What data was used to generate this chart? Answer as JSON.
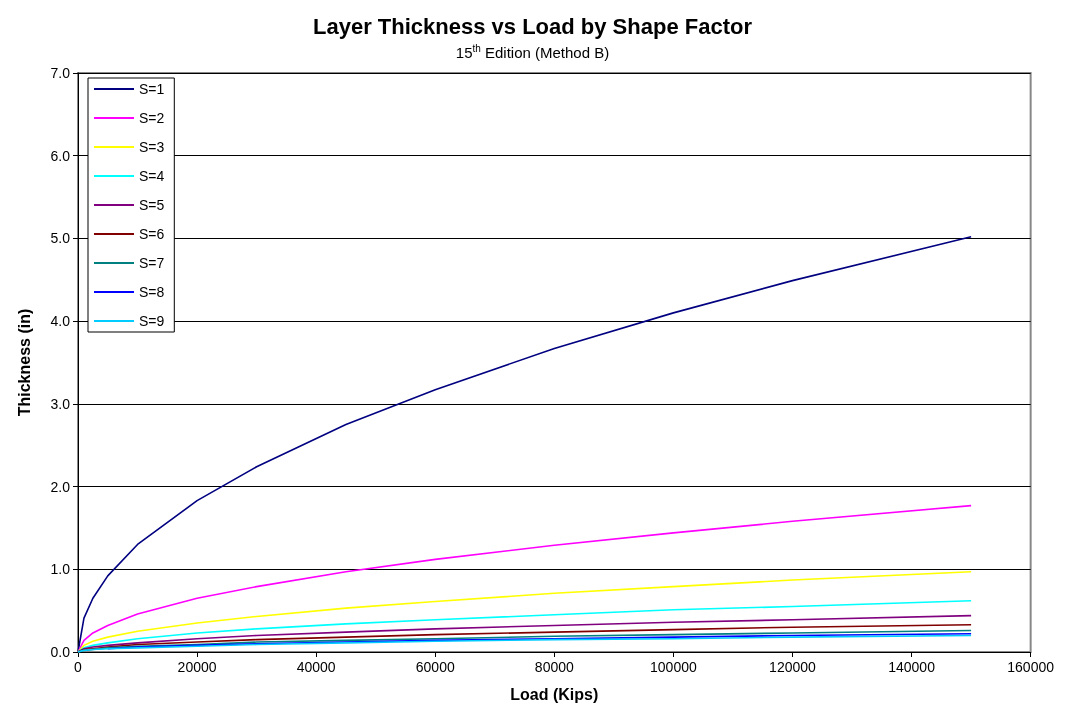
{
  "chart_data": {
    "type": "line",
    "title": "Layer Thickness vs Load by Shape Factor",
    "subtitle": "15$^{th}$ Edition (Method B)",
    "xlabel": "Load (Kips)",
    "ylabel": "Thickness (in)",
    "x": [
      0,
      1000,
      2500,
      5000,
      10000,
      20000,
      30000,
      45000,
      60000,
      80000,
      100000,
      120000,
      150000
    ],
    "series": [
      {
        "name": "S=1",
        "color": "#000080",
        "values": [
          0,
          0.41,
          0.65,
          0.92,
          1.3,
          1.83,
          2.24,
          2.75,
          3.17,
          3.67,
          4.1,
          4.49,
          5.02
        ]
      },
      {
        "name": "S=2",
        "color": "#ff00ff",
        "values": [
          0,
          0.14,
          0.23,
          0.32,
          0.46,
          0.65,
          0.79,
          0.97,
          1.12,
          1.29,
          1.44,
          1.58,
          1.77
        ]
      },
      {
        "name": "S=3",
        "color": "#ffff00",
        "values": [
          0,
          0.08,
          0.13,
          0.18,
          0.25,
          0.35,
          0.43,
          0.53,
          0.61,
          0.71,
          0.79,
          0.87,
          0.97
        ]
      },
      {
        "name": "S=4",
        "color": "#00ffff",
        "values": [
          0,
          0.05,
          0.08,
          0.11,
          0.16,
          0.23,
          0.28,
          0.34,
          0.39,
          0.45,
          0.51,
          0.55,
          0.62
        ]
      },
      {
        "name": "S=5",
        "color": "#800080",
        "values": [
          0,
          0.04,
          0.06,
          0.08,
          0.11,
          0.16,
          0.2,
          0.24,
          0.28,
          0.32,
          0.36,
          0.39,
          0.44
        ]
      },
      {
        "name": "S=6",
        "color": "#800000",
        "values": [
          0,
          0.03,
          0.04,
          0.06,
          0.09,
          0.12,
          0.15,
          0.18,
          0.21,
          0.24,
          0.27,
          0.3,
          0.33
        ]
      },
      {
        "name": "S=7",
        "color": "#008080",
        "values": [
          0,
          0.02,
          0.03,
          0.05,
          0.07,
          0.09,
          0.12,
          0.14,
          0.16,
          0.19,
          0.21,
          0.23,
          0.26
        ]
      },
      {
        "name": "S=8",
        "color": "#0000ff",
        "values": [
          null,
          null,
          null,
          0.04,
          0.06,
          0.08,
          0.1,
          0.12,
          0.14,
          0.16,
          0.18,
          0.2,
          0.22
        ]
      },
      {
        "name": "S=9",
        "color": "#00ccff",
        "values": [
          0,
          0.02,
          0.03,
          0.04,
          0.05,
          0.07,
          0.09,
          0.11,
          0.13,
          0.15,
          0.16,
          0.18,
          0.2
        ]
      }
    ],
    "xlim": [
      0,
      160000
    ],
    "xticks": [
      0,
      20000,
      40000,
      60000,
      80000,
      100000,
      120000,
      140000,
      160000
    ],
    "ylim": [
      0,
      7
    ],
    "yticks": [
      {
        "value": 0,
        "label": "0.0"
      },
      {
        "value": 1,
        "label": "1.0"
      },
      {
        "value": 2,
        "label": "2.0"
      },
      {
        "value": 3,
        "label": "3.0"
      },
      {
        "value": 4,
        "label": "4.0"
      },
      {
        "value": 5,
        "label": "5.0"
      },
      {
        "value": 6,
        "label": "6.0"
      },
      {
        "value": 7,
        "label": "7.0"
      }
    ],
    "grid": "y",
    "legend": "top left",
    "marker": "none",
    "line_style": "solid"
  }
}
